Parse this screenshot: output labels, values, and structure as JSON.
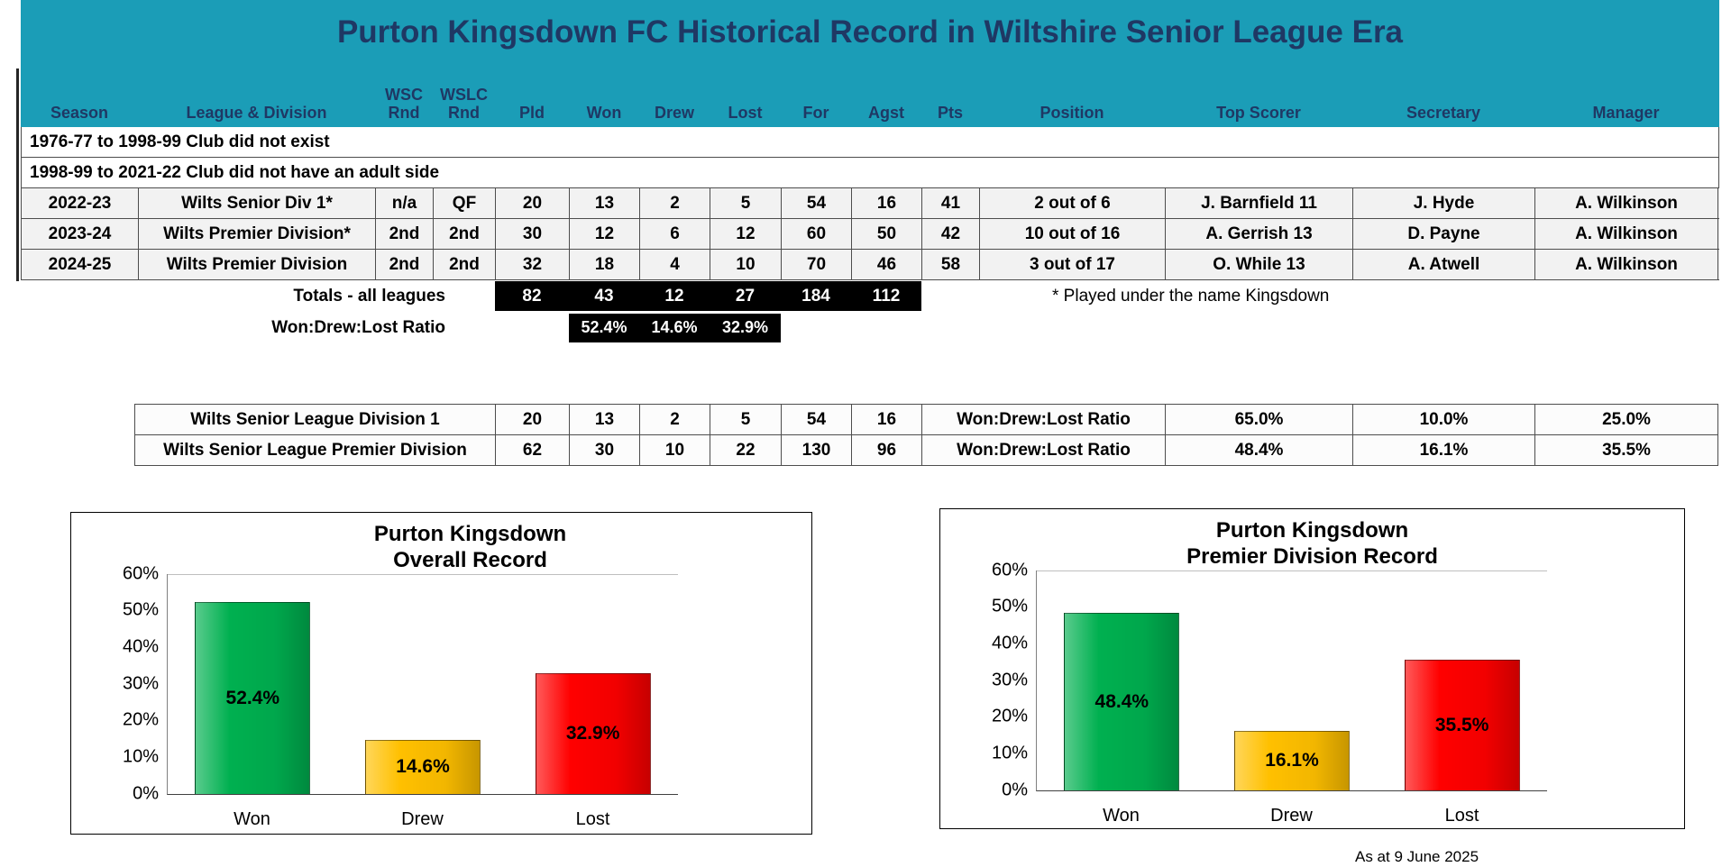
{
  "title": "Purton Kingsdown FC Historical Record in Wiltshire Senior League Era",
  "table": {
    "headers": [
      "Season",
      "League & Division",
      "WSC\nRnd",
      "WSLC\nRnd",
      "Pld",
      "Won",
      "Drew",
      "Lost",
      "For",
      "Agst",
      "Pts",
      "Position",
      "Top Scorer",
      "Secretary",
      "Manager"
    ],
    "note_rows": [
      "1976-77 to 1998-99 Club did not exist",
      "1998-99 to 2021-22 Club did not have an adult side"
    ],
    "rows": [
      [
        "2022-23",
        "Wilts Senior Div 1*",
        "n/a",
        "QF",
        "20",
        "13",
        "2",
        "5",
        "54",
        "16",
        "41",
        "2 out of 6",
        "J. Barnfield 11",
        "J. Hyde",
        "A. Wilkinson"
      ],
      [
        "2023-24",
        "Wilts Premier Division*",
        "2nd",
        "2nd",
        "30",
        "12",
        "6",
        "12",
        "60",
        "50",
        "42",
        "10 out of 16",
        "A. Gerrish 13",
        "D. Payne",
        "A. Wilkinson"
      ],
      [
        "2024-25",
        "Wilts Premier Division",
        "2nd",
        "2nd",
        "32",
        "18",
        "4",
        "10",
        "70",
        "46",
        "58",
        "3 out of 17",
        "O. While 13",
        "A. Atwell",
        "A. Wilkinson"
      ]
    ],
    "totals": {
      "label": "Totals - all leagues",
      "values": [
        "82",
        "43",
        "12",
        "27",
        "184",
        "112"
      ]
    },
    "ratio": {
      "label": "Won:Drew:Lost Ratio",
      "values": [
        "52.4%",
        "14.6%",
        "32.9%"
      ]
    },
    "footnote": "* Played under the name Kingsdown"
  },
  "summary": {
    "rows": [
      {
        "label": "Wilts Senior League Division 1",
        "values": [
          "20",
          "13",
          "2",
          "5",
          "54",
          "16"
        ],
        "ratio_label": "Won:Drew:Lost Ratio",
        "pcts": [
          "65.0%",
          "10.0%",
          "25.0%"
        ]
      },
      {
        "label": "Wilts Senior League Premier Division",
        "values": [
          "62",
          "30",
          "10",
          "22",
          "130",
          "96"
        ],
        "ratio_label": "Won:Drew:Lost Ratio",
        "pcts": [
          "48.4%",
          "16.1%",
          "35.5%"
        ]
      }
    ]
  },
  "chart_data": [
    {
      "type": "bar",
      "title": "Purton Kingsdown Overall Record",
      "title_lines": [
        "Purton Kingsdown",
        "Overall Record"
      ],
      "categories": [
        "Won",
        "Drew",
        "Lost"
      ],
      "values": [
        52.4,
        14.6,
        32.9
      ],
      "value_labels": [
        "52.4%",
        "14.6%",
        "32.9%"
      ],
      "colors": [
        "#00B050",
        "#FFC000",
        "#FF0000"
      ],
      "xlabel": "",
      "ylabel": "",
      "ylim": [
        0,
        60
      ],
      "yticks": [
        "0%",
        "10%",
        "20%",
        "30%",
        "40%",
        "50%",
        "60%"
      ],
      "legend": "none"
    },
    {
      "type": "bar",
      "title": "Purton Kingsdown Premier Division Record",
      "title_lines": [
        "Purton Kingsdown",
        "Premier Division Record"
      ],
      "categories": [
        "Won",
        "Drew",
        "Lost"
      ],
      "values": [
        48.4,
        16.1,
        35.5
      ],
      "value_labels": [
        "48.4%",
        "16.1%",
        "35.5%"
      ],
      "colors": [
        "#00B050",
        "#FFC000",
        "#FF0000"
      ],
      "xlabel": "",
      "ylabel": "",
      "ylim": [
        0,
        60
      ],
      "yticks": [
        "0%",
        "10%",
        "20%",
        "30%",
        "40%",
        "50%",
        "60%"
      ],
      "legend": "none"
    }
  ],
  "as_at": "As at 9 June 2025",
  "colors": {
    "header_bg": "#1b9db7",
    "header_text": "#1F3864",
    "band_bg": "#000000",
    "won": "#00B050",
    "drew": "#FFC000",
    "lost": "#FF0000"
  }
}
